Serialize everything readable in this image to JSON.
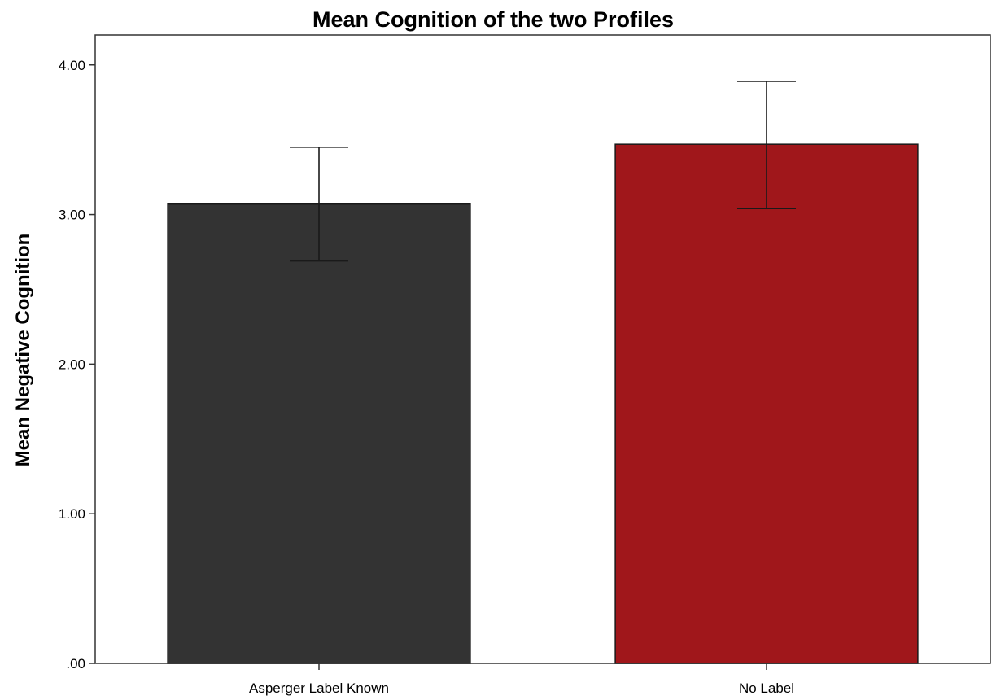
{
  "chart_data": {
    "type": "bar",
    "title": "Mean Cognition of the two Profiles",
    "xlabel": "",
    "ylabel": "Mean Negative Cognition",
    "categories": [
      "Asperger Label Known",
      "No Label"
    ],
    "values": [
      3.07,
      3.47
    ],
    "error_upper": [
      3.45,
      3.89
    ],
    "error_lower": [
      2.69,
      3.04
    ],
    "ylim": [
      0,
      4.2
    ],
    "yticks": [
      0,
      1,
      2,
      3,
      4
    ],
    "ytick_labels": [
      ".00",
      "1.00",
      "2.00",
      "3.00",
      "4.00"
    ],
    "grid": false,
    "colors": [
      "#333333",
      "#a0171b"
    ]
  }
}
